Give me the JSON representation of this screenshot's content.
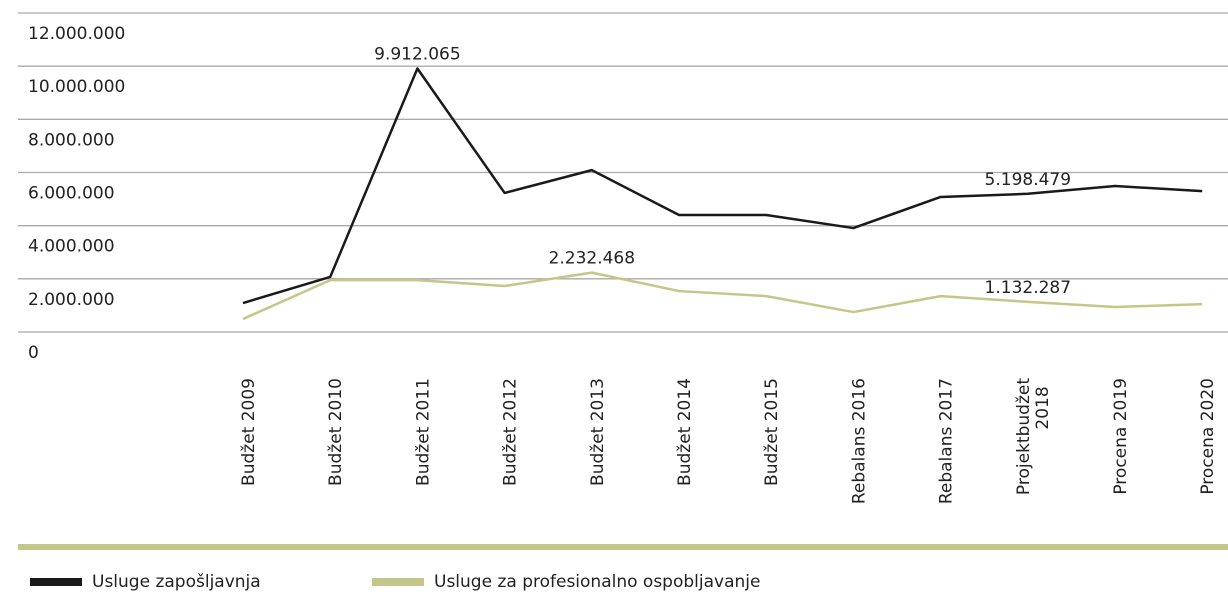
{
  "chart_data": {
    "type": "line",
    "categories": [
      "Budžet 2009",
      "Budžet 2010",
      "Budžet 2011",
      "Budžet 2012",
      "Budžet 2013",
      "Budžet 2014",
      "Budžet 2015",
      "Rebalans 2016",
      "Rebalans 2017",
      "Projektbudžet 2018",
      "Procena 2019",
      "Procena 2020"
    ],
    "series": [
      {
        "name": "Usluge zapošljavnja",
        "color": "#1a1a1a",
        "values": [
          1090000,
          2070000,
          9912065,
          5230000,
          6090000,
          4400000,
          4400000,
          3910000,
          5080000,
          5198479,
          5490000,
          5300000
        ],
        "value_labels": [
          null,
          null,
          "9.912.065",
          null,
          null,
          null,
          null,
          null,
          null,
          "5.198.479",
          null,
          null
        ]
      },
      {
        "name": "Usluge za profesionalno ospobljavanje",
        "color": "#c5c68a",
        "values": [
          490000,
          1950000,
          1950000,
          1730000,
          2232468,
          1540000,
          1350000,
          750000,
          1350000,
          1132287,
          940000,
          1050000
        ],
        "value_labels": [
          null,
          null,
          null,
          null,
          "2.232.468",
          null,
          null,
          null,
          null,
          "1.132.287",
          null,
          null
        ]
      }
    ],
    "ylim": [
      0,
      12000000
    ],
    "yticks": [
      {
        "value": 0,
        "label": "0"
      },
      {
        "value": 2000000,
        "label": "2.000.000"
      },
      {
        "value": 4000000,
        "label": "4.000.000"
      },
      {
        "value": 6000000,
        "label": "6.000.000"
      },
      {
        "value": 8000000,
        "label": "8.000.000"
      },
      {
        "value": 10000000,
        "label": "10.000.000"
      },
      {
        "value": 12000000,
        "label": "12.000.000"
      }
    ],
    "grid": true
  }
}
